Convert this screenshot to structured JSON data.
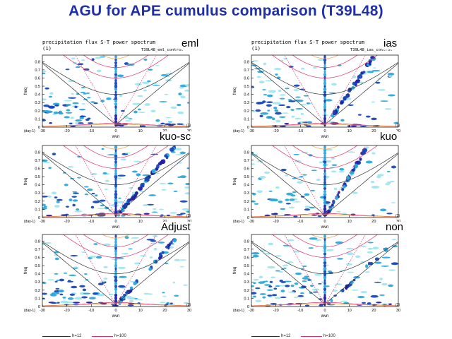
{
  "slide": {
    "title": "AGU for APE cumulus comparison (T39L48)"
  },
  "header": {
    "plot_title": "precipitation flux S-T power spectrum",
    "index": "(1)",
    "run_left": "T39L48_eml_control",
    "run_right": "T39L48_ias_control"
  },
  "axis": {
    "xlabel": "wvn",
    "ylabel": "freq",
    "x_unit": "(1)",
    "y_unit": "(day-1)",
    "xlim": [
      -30,
      30
    ],
    "ylim": [
      0,
      0.88
    ],
    "xticks": [
      -30,
      -20,
      -10,
      0,
      10,
      20,
      30
    ],
    "yticks": [
      0,
      0.1,
      0.2,
      0.3,
      0.4,
      0.5,
      0.6,
      0.7,
      0.8
    ]
  },
  "legend": {
    "items": [
      "h=12",
      "h=100"
    ]
  },
  "colors": {
    "title": "#1f2fa6",
    "spectrum_light": "#9fe6f0",
    "spectrum_mid": "#2aa8dc",
    "spectrum_dark": "#1848b8",
    "spectrum_max": "#2020a0",
    "curve_black": "#333333",
    "curve_red": "#e0306a",
    "curve_orange": "#f0a050",
    "curve_yellow": "#e8d860"
  },
  "chart_data": [
    {
      "scheme": "eml",
      "type": "heatmap",
      "kelvin_slope": 0.0,
      "kelvin_strength": 0.1,
      "mrg_strength": 0.3,
      "equatorial_strength": 0.7,
      "westward_noise": 0.6
    },
    {
      "scheme": "ias",
      "type": "heatmap",
      "kelvin_slope": 0.043,
      "kelvin_strength": 0.8,
      "mrg_strength": 0.3,
      "equatorial_strength": 0.6,
      "westward_noise": 0.5
    },
    {
      "scheme": "kuo-sc",
      "type": "heatmap",
      "kelvin_slope": 0.036,
      "kelvin_strength": 1.0,
      "mrg_strength": 0.2,
      "equatorial_strength": 0.5,
      "westward_noise": 0.5
    },
    {
      "scheme": "kuo",
      "type": "heatmap",
      "kelvin_slope": 0.05,
      "kelvin_strength": 1.0,
      "mrg_strength": 0.2,
      "equatorial_strength": 0.5,
      "westward_noise": 0.4
    },
    {
      "scheme": "Adjust",
      "type": "heatmap",
      "kelvin_slope": 0.034,
      "kelvin_strength": 0.6,
      "mrg_strength": 0.25,
      "equatorial_strength": 0.6,
      "westward_noise": 0.6
    },
    {
      "scheme": "non",
      "type": "heatmap",
      "kelvin_slope": 0.028,
      "kelvin_strength": 0.3,
      "mrg_strength": 0.4,
      "equatorial_strength": 0.5,
      "westward_noise": 0.7
    }
  ]
}
